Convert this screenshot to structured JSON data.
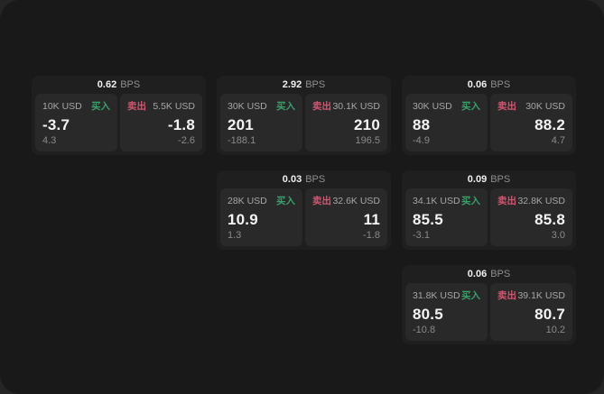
{
  "labels": {
    "buy": "买入",
    "sell": "卖出",
    "bps_suffix": "BPS"
  },
  "colors": {
    "buy_green": "#3aa06a",
    "sell_red": "#cf5670",
    "window_bg": "#191919",
    "card_bg": "#1f1f1f",
    "panel_bg": "#292929"
  },
  "cards": [
    {
      "row": 0,
      "col": 0,
      "bps": "0.62",
      "buy": {
        "size": "10K USD",
        "price": "-3.7",
        "sub": "4.3"
      },
      "sell": {
        "size": "5.5K USD",
        "price": "-1.8",
        "sub": "-2.6"
      }
    },
    {
      "row": 0,
      "col": 1,
      "bps": "2.92",
      "buy": {
        "size": "30K USD",
        "price": "201",
        "sub": "-188.1"
      },
      "sell": {
        "size": "30.1K USD",
        "price": "210",
        "sub": "196.5"
      }
    },
    {
      "row": 0,
      "col": 2,
      "bps": "0.06",
      "buy": {
        "size": "30K USD",
        "price": "88",
        "sub": "-4.9"
      },
      "sell": {
        "size": "30K USD",
        "price": "88.2",
        "sub": "4.7"
      }
    },
    {
      "row": 1,
      "col": 1,
      "bps": "0.03",
      "buy": {
        "size": "28K USD",
        "price": "10.9",
        "sub": "1.3"
      },
      "sell": {
        "size": "32.6K USD",
        "price": "11",
        "sub": "-1.8"
      }
    },
    {
      "row": 1,
      "col": 2,
      "bps": "0.09",
      "buy": {
        "size": "34.1K USD",
        "price": "85.5",
        "sub": "-3.1"
      },
      "sell": {
        "size": "32.8K USD",
        "price": "85.8",
        "sub": "3.0"
      }
    },
    {
      "row": 2,
      "col": 2,
      "bps": "0.06",
      "buy": {
        "size": "31.8K USD",
        "price": "80.5",
        "sub": "-10.8"
      },
      "sell": {
        "size": "39.1K USD",
        "price": "80.7",
        "sub": "10.2"
      }
    }
  ]
}
